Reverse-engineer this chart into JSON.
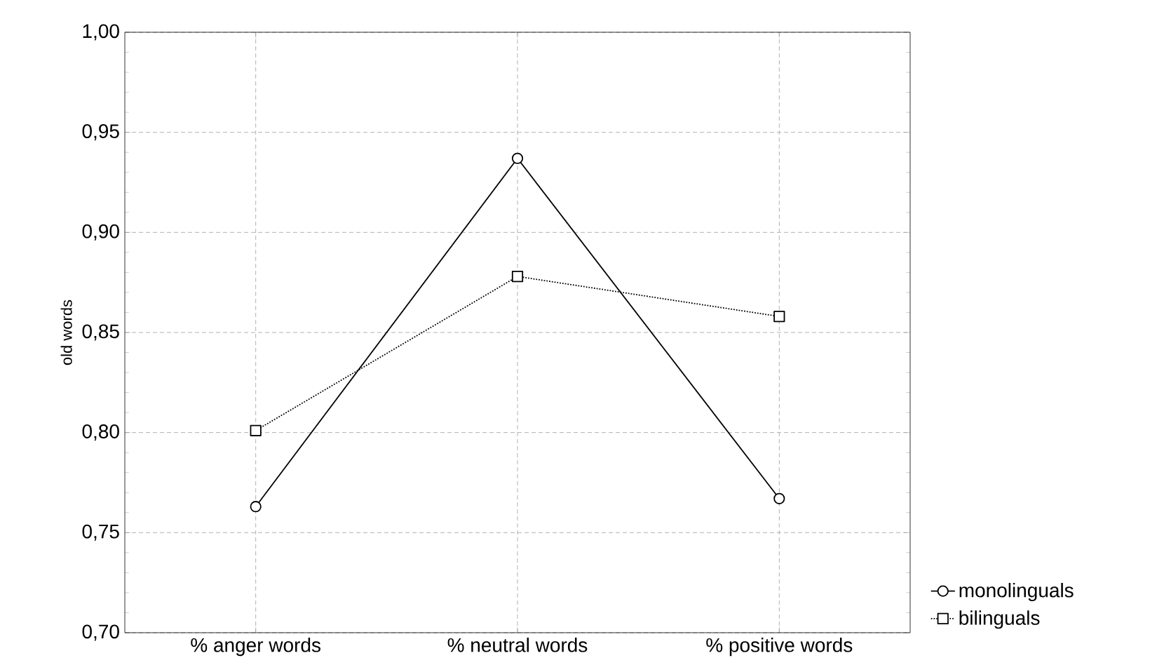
{
  "chart_data": {
    "type": "line",
    "ylabel": "old words",
    "categories": [
      "% anger words",
      "% neutral words",
      "% positive words"
    ],
    "series": [
      {
        "name": "monolinguals",
        "color": "#000000",
        "marker": "circle",
        "line_style": "solid",
        "values": [
          0.763,
          0.937,
          0.767
        ]
      },
      {
        "name": "bilinguals",
        "color": "#000000",
        "marker": "square",
        "line_style": "dotted",
        "values": [
          0.801,
          0.878,
          0.858
        ]
      }
    ],
    "ylim": [
      0.7,
      1.0
    ],
    "yticks": [
      {
        "value": 0.7,
        "label": "0,70"
      },
      {
        "value": 0.75,
        "label": "0,75"
      },
      {
        "value": 0.8,
        "label": "0,80"
      },
      {
        "value": 0.85,
        "label": "0,85"
      },
      {
        "value": 0.9,
        "label": "0,90"
      },
      {
        "value": 0.95,
        "label": "0,95"
      },
      {
        "value": 1.0,
        "label": "1,00"
      }
    ],
    "grid": true,
    "legend": "bottom right"
  }
}
